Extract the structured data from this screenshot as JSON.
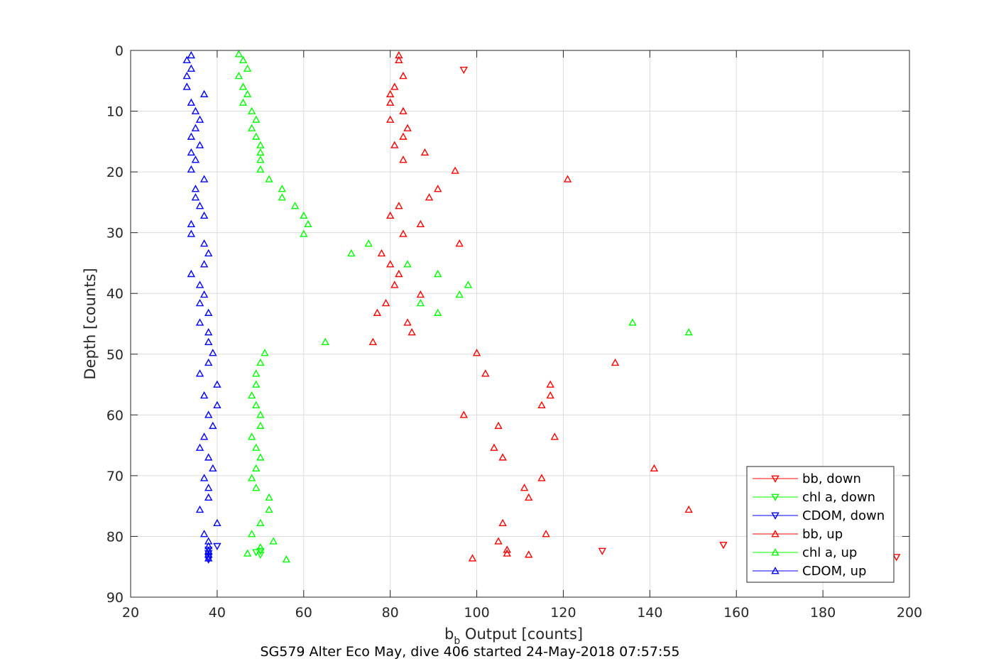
{
  "chart_data": {
    "type": "scatter",
    "xlabel_base": "b",
    "xlabel_sub": "b",
    "xlabel_rest": " Output [counts]",
    "ylabel": "Depth [counts]",
    "caption": "SG579 Alter Eco May, dive 406 started 24-May-2018 07:57:55",
    "xlim": [
      20,
      200
    ],
    "ylim": [
      0,
      90
    ],
    "y_reversed": true,
    "xticks": [
      20,
      40,
      60,
      80,
      100,
      120,
      140,
      160,
      180,
      200
    ],
    "yticks": [
      0,
      10,
      20,
      30,
      40,
      50,
      60,
      70,
      80,
      90
    ],
    "grid": true,
    "legend_position": "bottom-right",
    "colors": {
      "red": "#ff0000",
      "green": "#00ff00",
      "blue": "#0000ff"
    },
    "series": [
      {
        "name": "bb, down",
        "color": "#ff0000",
        "marker": "triangle-down",
        "points": [
          [
            97,
            3.2
          ],
          [
            129,
            82.4
          ],
          [
            157,
            81.4
          ],
          [
            197,
            83.4
          ]
        ]
      },
      {
        "name": "chl a, down",
        "color": "#00ff00",
        "marker": "triangle-down",
        "points": [
          [
            50,
            82.4
          ],
          [
            49,
            82.6
          ],
          [
            50,
            83.0
          ]
        ]
      },
      {
        "name": "CDOM, down",
        "color": "#0000ff",
        "marker": "triangle-down",
        "points": [
          [
            40,
            81.6
          ],
          [
            38,
            82.2
          ],
          [
            38,
            82.8
          ],
          [
            38,
            83.4
          ],
          [
            38,
            83.8
          ]
        ]
      },
      {
        "name": "bb, up",
        "color": "#ff0000",
        "marker": "triangle-up",
        "points": [
          [
            82,
            0.8
          ],
          [
            82,
            1.6
          ],
          [
            83,
            4.2
          ],
          [
            81,
            6.0
          ],
          [
            80,
            7.2
          ],
          [
            80,
            8.6
          ],
          [
            83,
            10.0
          ],
          [
            80,
            11.4
          ],
          [
            84,
            12.8
          ],
          [
            83,
            14.2
          ],
          [
            81,
            15.6
          ],
          [
            88,
            16.8
          ],
          [
            83,
            18.0
          ],
          [
            95,
            19.8
          ],
          [
            121,
            21.2
          ],
          [
            91,
            22.8
          ],
          [
            89,
            24.2
          ],
          [
            82,
            25.6
          ],
          [
            80,
            27.2
          ],
          [
            87,
            28.6
          ],
          [
            83,
            30.2
          ],
          [
            96,
            31.8
          ],
          [
            78,
            33.4
          ],
          [
            80,
            35.2
          ],
          [
            82,
            36.8
          ],
          [
            81,
            38.6
          ],
          [
            87,
            40.2
          ],
          [
            79,
            41.6
          ],
          [
            77,
            43.2
          ],
          [
            84,
            44.8
          ],
          [
            85,
            46.4
          ],
          [
            76,
            48.0
          ],
          [
            100,
            49.8
          ],
          [
            132,
            51.4
          ],
          [
            102,
            53.2
          ],
          [
            117,
            55.0
          ],
          [
            117,
            56.8
          ],
          [
            115,
            58.4
          ],
          [
            97,
            60.0
          ],
          [
            105,
            61.8
          ],
          [
            118,
            63.6
          ],
          [
            104,
            65.4
          ],
          [
            106,
            67.0
          ],
          [
            141,
            68.8
          ],
          [
            115,
            70.4
          ],
          [
            111,
            72.0
          ],
          [
            112,
            73.6
          ],
          [
            149,
            75.6
          ],
          [
            106,
            77.8
          ],
          [
            116,
            79.6
          ],
          [
            105,
            80.8
          ],
          [
            107,
            82.2
          ],
          [
            107,
            82.8
          ],
          [
            112,
            83.0
          ],
          [
            99,
            83.6
          ]
        ]
      },
      {
        "name": "chl a, up",
        "color": "#00ff00",
        "marker": "triangle-up",
        "points": [
          [
            45,
            0.6
          ],
          [
            46,
            1.6
          ],
          [
            47,
            3.0
          ],
          [
            45,
            4.2
          ],
          [
            46,
            6.0
          ],
          [
            47,
            7.2
          ],
          [
            46,
            8.6
          ],
          [
            48,
            10.0
          ],
          [
            49,
            11.4
          ],
          [
            48,
            12.8
          ],
          [
            49,
            14.2
          ],
          [
            50,
            15.6
          ],
          [
            50,
            16.8
          ],
          [
            50,
            18.0
          ],
          [
            50,
            19.6
          ],
          [
            52,
            21.2
          ],
          [
            55,
            22.8
          ],
          [
            55,
            24.2
          ],
          [
            58,
            25.6
          ],
          [
            60,
            27.2
          ],
          [
            61,
            28.6
          ],
          [
            60,
            30.2
          ],
          [
            75,
            31.8
          ],
          [
            71,
            33.4
          ],
          [
            84,
            35.2
          ],
          [
            91,
            36.8
          ],
          [
            98,
            38.6
          ],
          [
            96,
            40.2
          ],
          [
            87,
            41.6
          ],
          [
            91,
            43.2
          ],
          [
            136,
            44.8
          ],
          [
            149,
            46.4
          ],
          [
            65,
            48.0
          ],
          [
            51,
            49.8
          ],
          [
            50,
            51.4
          ],
          [
            49,
            53.2
          ],
          [
            49,
            55.0
          ],
          [
            48,
            56.8
          ],
          [
            49,
            58.4
          ],
          [
            50,
            60.0
          ],
          [
            50,
            61.8
          ],
          [
            48,
            63.6
          ],
          [
            49,
            65.4
          ],
          [
            50,
            67.0
          ],
          [
            49,
            68.8
          ],
          [
            48,
            70.4
          ],
          [
            49,
            72.0
          ],
          [
            52,
            73.6
          ],
          [
            52,
            75.6
          ],
          [
            50,
            77.8
          ],
          [
            48,
            79.6
          ],
          [
            53,
            80.8
          ],
          [
            50,
            81.8
          ],
          [
            47,
            82.8
          ],
          [
            56,
            83.8
          ]
        ]
      },
      {
        "name": "CDOM, up",
        "color": "#0000ff",
        "marker": "triangle-up",
        "points": [
          [
            34,
            0.8
          ],
          [
            33,
            1.6
          ],
          [
            34,
            3.0
          ],
          [
            33,
            4.2
          ],
          [
            33,
            6.0
          ],
          [
            37,
            7.2
          ],
          [
            34,
            8.6
          ],
          [
            35,
            10.0
          ],
          [
            36,
            11.4
          ],
          [
            35,
            12.8
          ],
          [
            34,
            14.2
          ],
          [
            36,
            15.6
          ],
          [
            34,
            16.8
          ],
          [
            35,
            18.0
          ],
          [
            34,
            19.6
          ],
          [
            37,
            21.2
          ],
          [
            35,
            22.8
          ],
          [
            35,
            24.2
          ],
          [
            36,
            25.6
          ],
          [
            37,
            27.2
          ],
          [
            34,
            28.6
          ],
          [
            34,
            30.2
          ],
          [
            37,
            31.8
          ],
          [
            38,
            33.4
          ],
          [
            37,
            35.2
          ],
          [
            34,
            36.8
          ],
          [
            36,
            38.6
          ],
          [
            37,
            40.2
          ],
          [
            36,
            41.6
          ],
          [
            38,
            43.2
          ],
          [
            36,
            44.8
          ],
          [
            38,
            46.4
          ],
          [
            38,
            48.0
          ],
          [
            39,
            49.8
          ],
          [
            38,
            51.4
          ],
          [
            36,
            53.2
          ],
          [
            40,
            55.0
          ],
          [
            37,
            56.8
          ],
          [
            40,
            58.4
          ],
          [
            38,
            60.0
          ],
          [
            39,
            61.8
          ],
          [
            37,
            63.6
          ],
          [
            36,
            65.4
          ],
          [
            38,
            67.0
          ],
          [
            39,
            68.8
          ],
          [
            37,
            70.4
          ],
          [
            38,
            72.0
          ],
          [
            38,
            73.6
          ],
          [
            36,
            75.6
          ],
          [
            40,
            77.8
          ],
          [
            37,
            79.6
          ],
          [
            38,
            80.8
          ],
          [
            38,
            81.6
          ],
          [
            38,
            82.4
          ],
          [
            38,
            83.0
          ],
          [
            38,
            83.6
          ]
        ]
      }
    ]
  }
}
